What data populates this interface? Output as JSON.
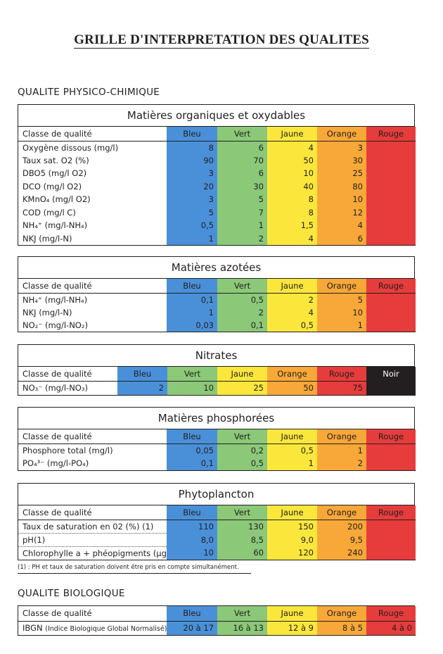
{
  "title": "GRILLE D'INTERPRETATION DES QUALITES",
  "section_physico": "QUALITE  PHYSICO-CHIMIQUE",
  "section_bio": "QUALITE BIOLOGIQUE",
  "colors": {
    "bleu": "#4a90d9",
    "vert": "#8bc878",
    "jaune": "#fbe73c",
    "orange": "#f7a838",
    "rouge": "#e63c3c",
    "noir": "#231f20"
  },
  "organiques": {
    "title": "Matières organiques et oxydables",
    "header": [
      "Classe de qualité",
      "Bleu",
      "Vert",
      "Jaune",
      "Orange",
      "Rouge"
    ],
    "rows": [
      {
        "label": "Oxygène dissous (mg/l)",
        "values": [
          "8",
          "6",
          "4",
          "3"
        ]
      },
      {
        "label": "Taux sat. O2 (%)",
        "values": [
          "90",
          "70",
          "50",
          "30"
        ]
      },
      {
        "label": "DBO5 (mg/l O2)",
        "values": [
          "3",
          "6",
          "10",
          "25"
        ]
      },
      {
        "label": "DCO (mg/l O2)",
        "values": [
          "20",
          "30",
          "40",
          "80"
        ]
      },
      {
        "label": "KMnO₄ (mg/l O2)",
        "values": [
          "3",
          "5",
          "8",
          "10"
        ]
      },
      {
        "label": "COD (mg/l C)",
        "values": [
          "5",
          "7",
          "8",
          "12"
        ]
      },
      {
        "label": "NH₄⁺ (mg/l-NH₄)",
        "values": [
          "0,5",
          "1",
          "1,5",
          "4"
        ]
      },
      {
        "label": "NKJ (mg/l-N)",
        "values": [
          "1",
          "2",
          "4",
          "6"
        ]
      }
    ]
  },
  "azotees": {
    "title": "Matières azotées",
    "header": [
      "Classe de qualité",
      "Bleu",
      "Vert",
      "Jaune",
      "Orange",
      "Rouge"
    ],
    "rows": [
      {
        "label": "NH₄⁺ (mg/l-NH₄)",
        "values": [
          "0,1",
          "0,5",
          "2",
          "5"
        ]
      },
      {
        "label": "NKJ (mg/l-N)",
        "values": [
          "1",
          "2",
          "4",
          "10"
        ]
      },
      {
        "label": "NO₂⁻ (mg/l-NO₂)",
        "values": [
          "0,03",
          "0,1",
          "0,5",
          "1"
        ]
      }
    ]
  },
  "nitrates": {
    "title": "Nitrates",
    "header": [
      "Classe de qualité",
      "Bleu",
      "Vert",
      "Jaune",
      "Orange",
      "Rouge",
      "Noir"
    ],
    "rows": [
      {
        "label": "NO₃⁻ (mg/l-NO₃)",
        "values": [
          "2",
          "10",
          "25",
          "50",
          "75"
        ]
      }
    ]
  },
  "phosphorees": {
    "title": "Matières phosphorées",
    "header": [
      "Classe de qualité",
      "Bleu",
      "Vert",
      "Jaune",
      "Orange",
      "Rouge"
    ],
    "rows": [
      {
        "label": "Phosphore total (mg/l)",
        "values": [
          "0,05",
          "0,2",
          "0,5",
          "1"
        ]
      },
      {
        "label": "PO₄³⁻ (mg/l-PO₄)",
        "values": [
          "0,1",
          "0,5",
          "1",
          "2"
        ]
      }
    ]
  },
  "phytoplancton": {
    "title": "Phytoplancton",
    "header": [
      "Classe de qualité",
      "Bleu",
      "Vert",
      "Jaune",
      "Orange",
      "Rouge"
    ],
    "rows": [
      {
        "label": "Taux de saturation en 02 (%) (1)",
        "values": [
          "110",
          "130",
          "150",
          "200"
        ]
      },
      {
        "label": "pH(1)",
        "values": [
          "8,0",
          "8,5",
          "9,0",
          "9,5"
        ]
      },
      {
        "label": "Chlorophylle a + phéopigments (µg/l)",
        "values": [
          "10",
          "60",
          "120",
          "240"
        ]
      }
    ]
  },
  "footnote": "(1) : PH et taux de saturation doivent être pris en compte simultanément.",
  "biologique": {
    "header": [
      "Classe de qualité",
      "Bleu",
      "Vert",
      "Jaune",
      "Orange",
      "Rouge"
    ],
    "row": {
      "label": "IBGN",
      "label_note": "(Indice Biologique Global Normalisé)",
      "values": [
        "20 à 17",
        "16 à 13",
        "12 à 9",
        "8 à 5",
        "4 à 0"
      ]
    }
  }
}
